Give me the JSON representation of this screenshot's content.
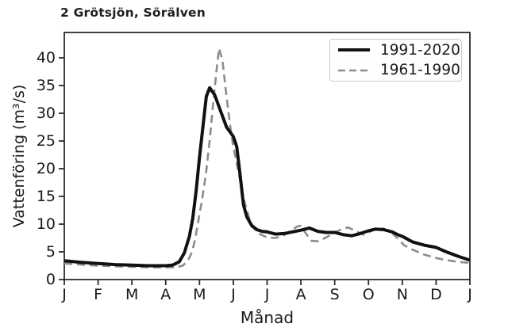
{
  "chart_data": {
    "type": "line",
    "title": "2 Grötsjön, Sörälven",
    "xlabel": "Månad",
    "ylabel": "Vattenföring (m³/s)",
    "x_tick_labels": [
      "J",
      "F",
      "M",
      "A",
      "M",
      "J",
      "J",
      "A",
      "S",
      "O",
      "N",
      "D",
      "J"
    ],
    "y_ticks": [
      0,
      5,
      10,
      15,
      20,
      25,
      30,
      35,
      40
    ],
    "xlim_months": [
      0,
      12
    ],
    "ylim": [
      0,
      44
    ],
    "grid": false,
    "legend_position": "upper right",
    "axis_color": "#2b2b2b",
    "series": [
      {
        "name": "1991-2020",
        "style": "solid",
        "color": "#111111",
        "width": 4,
        "x": [
          0,
          0.5,
          1,
          1.5,
          2,
          2.5,
          3,
          3.2,
          3.4,
          3.55,
          3.7,
          3.8,
          3.9,
          4.0,
          4.1,
          4.2,
          4.3,
          4.45,
          4.6,
          4.8,
          5.0,
          5.1,
          5.2,
          5.3,
          5.4,
          5.55,
          5.7,
          5.85,
          6.0,
          6.25,
          6.5,
          6.75,
          7.0,
          7.25,
          7.5,
          7.75,
          8.0,
          8.25,
          8.5,
          8.7,
          9.0,
          9.2,
          9.45,
          9.7,
          9.9,
          10.0,
          10.3,
          10.65,
          11.0,
          11.3,
          11.65,
          12.0
        ],
        "values": [
          3.4,
          3.1,
          2.9,
          2.7,
          2.6,
          2.5,
          2.5,
          2.6,
          3.2,
          4.8,
          7.8,
          11,
          16,
          22,
          27.5,
          33,
          34.6,
          33.3,
          30.8,
          27.5,
          25.8,
          24,
          19,
          13.5,
          11.3,
          9.7,
          9.0,
          8.7,
          8.6,
          8.2,
          8.3,
          8.6,
          8.9,
          9.3,
          8.7,
          8.5,
          8.5,
          8.1,
          7.9,
          8.2,
          8.8,
          9.1,
          9.0,
          8.6,
          8.0,
          7.8,
          6.8,
          6.2,
          5.8,
          5.0,
          4.2,
          3.5
        ]
      },
      {
        "name": "1961-1990",
        "style": "dashed",
        "color": "#8c8c8c",
        "width": 2.6,
        "x": [
          0,
          0.5,
          1,
          1.5,
          2,
          2.5,
          3,
          3.3,
          3.5,
          3.65,
          3.78,
          3.88,
          3.97,
          4.08,
          4.19,
          4.3,
          4.4,
          4.5,
          4.58,
          4.68,
          4.8,
          4.9,
          5.0,
          5.15,
          5.3,
          5.4,
          5.5,
          5.62,
          5.75,
          6.0,
          6.25,
          6.5,
          6.75,
          6.9,
          7.0,
          7.15,
          7.3,
          7.5,
          7.75,
          8.0,
          8.25,
          8.4,
          8.6,
          8.85,
          9.0,
          9.2,
          9.45,
          9.7,
          9.9,
          10.05,
          10.3,
          10.65,
          11.0,
          11.3,
          11.65,
          12.0
        ],
        "values": [
          2.9,
          2.7,
          2.5,
          2.4,
          2.3,
          2.2,
          2.2,
          2.2,
          2.5,
          3.3,
          5.0,
          7.5,
          10.8,
          14.5,
          19,
          25,
          31.5,
          37.5,
          41.7,
          39.5,
          33,
          28,
          24,
          19.5,
          14.8,
          12.5,
          10.5,
          9.2,
          8.3,
          7.6,
          7.5,
          8.0,
          9.0,
          9.6,
          9.7,
          8.3,
          7.0,
          6.9,
          7.6,
          8.5,
          9.2,
          9.4,
          8.8,
          8.1,
          8.5,
          9.1,
          9.2,
          8.4,
          7.2,
          6.2,
          5.4,
          4.5,
          3.9,
          3.5,
          3.2,
          3.0
        ]
      }
    ]
  }
}
